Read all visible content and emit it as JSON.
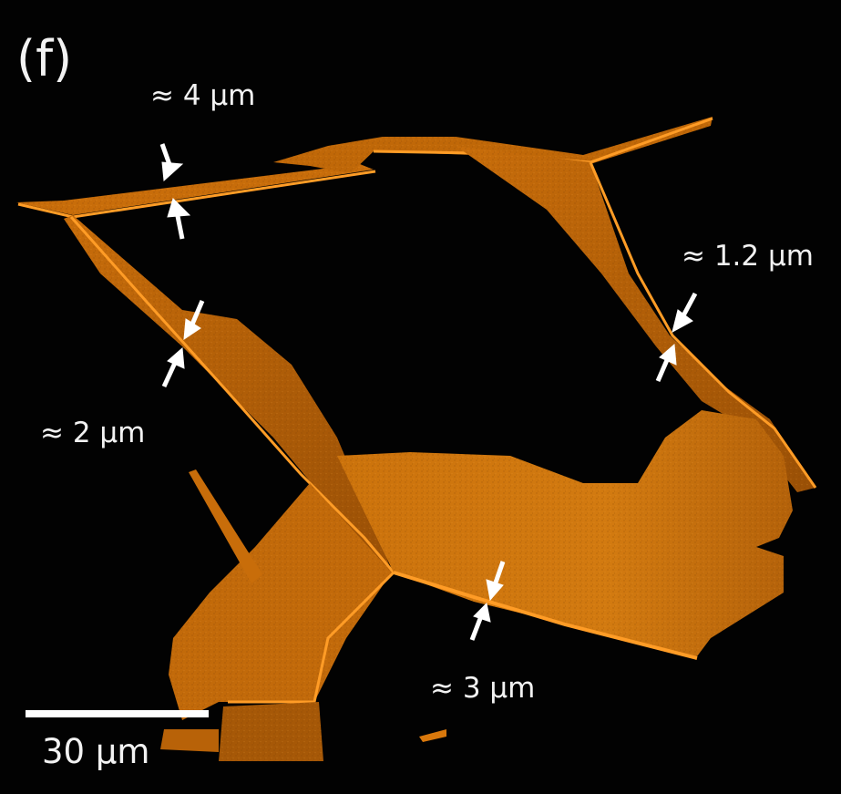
{
  "figure": {
    "panel_label": "(f)",
    "colors": {
      "background": "#000000",
      "structure": "#d9780c",
      "edge_highlight": "#ff9c26",
      "annotation": "#ffffff"
    },
    "measurements": [
      {
        "id": "wall-top-left",
        "text": "≈ 4 µm"
      },
      {
        "id": "wall-right",
        "text": "≈ 1.2 µm"
      },
      {
        "id": "wall-left",
        "text": "≈ 2 µm"
      },
      {
        "id": "wall-bottom",
        "text": "≈ 3 µm"
      }
    ],
    "scale_bar": {
      "label": "30 µm"
    }
  }
}
